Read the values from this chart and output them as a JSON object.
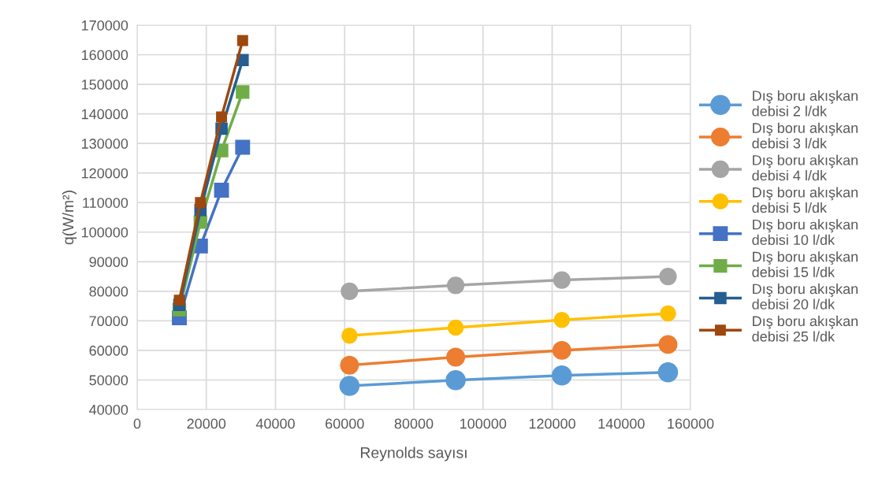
{
  "chart_data": {
    "type": "line",
    "xlabel": "Reynolds sayısı",
    "ylabel": "q(W/m²)",
    "xlim": [
      0,
      160000
    ],
    "xticks": [
      0,
      20000,
      40000,
      60000,
      80000,
      100000,
      120000,
      140000,
      160000
    ],
    "ylim": [
      40000,
      170000
    ],
    "yticks": [
      40000,
      50000,
      60000,
      70000,
      80000,
      90000,
      100000,
      110000,
      120000,
      130000,
      140000,
      150000,
      160000,
      170000
    ],
    "grid": true,
    "legend": "right",
    "series": [
      {
        "name": "Dış boru akışkan debisi 2 l/dk",
        "color": "#5b9bd5",
        "marker": "circle",
        "x": [
          61400,
          92100,
          122800,
          153500
        ],
        "values": [
          48000,
          49900,
          51500,
          52600
        ]
      },
      {
        "name": "Dış boru akışkan debisi 3 l/dk",
        "color": "#ed7d31",
        "marker": "circle",
        "x": [
          61400,
          92100,
          122800,
          153500
        ],
        "values": [
          55000,
          57700,
          60000,
          62000
        ]
      },
      {
        "name": "Dış boru akışkan debisi 4 l/dk",
        "color": "#a5a5a5",
        "marker": "circle",
        "x": [
          61400,
          92100,
          122800,
          153500
        ],
        "values": [
          80000,
          82000,
          83800,
          85000
        ]
      },
      {
        "name": "Dış boru akışkan debisi 5 l/dk",
        "color": "#ffc000",
        "marker": "circle",
        "x": [
          61400,
          92100,
          122800,
          153500
        ],
        "values": [
          65000,
          67700,
          70300,
          72500
        ]
      },
      {
        "name": "Dış boru akışkan debisi 10 l/dk",
        "color": "#4472c4",
        "marker": "square",
        "x": [
          12200,
          18300,
          24400,
          30500
        ],
        "values": [
          71000,
          95300,
          114200,
          128700
        ]
      },
      {
        "name": "Dış boru akışkan debisi 15 l/dk",
        "color": "#70ad47",
        "marker": "square",
        "x": [
          12200,
          18300,
          24400,
          30500
        ],
        "values": [
          73800,
          103400,
          127600,
          147400
        ]
      },
      {
        "name": "Dış boru akışkan debisi 20 l/dk",
        "color": "#255e91",
        "marker": "square",
        "x": [
          12200,
          18300,
          24400,
          30500
        ],
        "values": [
          75400,
          107500,
          135000,
          158200
        ]
      },
      {
        "name": "Dış boru akışkan debisi 25 l/dk",
        "color": "#9e480e",
        "marker": "square",
        "x": [
          12200,
          18300,
          24400,
          30500
        ],
        "values": [
          77000,
          110000,
          139000,
          164800
        ]
      }
    ]
  }
}
